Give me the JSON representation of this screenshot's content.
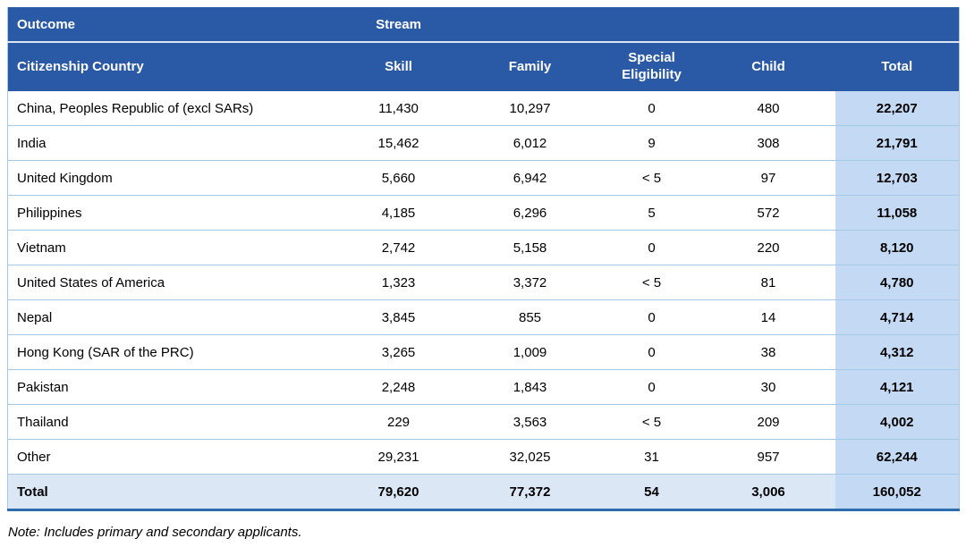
{
  "header": {
    "row1": {
      "outcome": "Outcome",
      "stream": "Stream"
    },
    "row2": {
      "country": "Citizenship Country",
      "skill": "Skill",
      "family": "Family",
      "special": "Special Eligibility",
      "child": "Child",
      "total": "Total"
    }
  },
  "rows": [
    {
      "country": "China, Peoples Republic of (excl SARs)",
      "skill": "11,430",
      "family": "10,297",
      "special": "0",
      "child": "480",
      "total": "22,207"
    },
    {
      "country": "India",
      "skill": "15,462",
      "family": "6,012",
      "special": "9",
      "child": "308",
      "total": "21,791"
    },
    {
      "country": "United Kingdom",
      "skill": "5,660",
      "family": "6,942",
      "special": "< 5",
      "child": "97",
      "total": "12,703"
    },
    {
      "country": "Philippines",
      "skill": "4,185",
      "family": "6,296",
      "special": "5",
      "child": "572",
      "total": "11,058"
    },
    {
      "country": "Vietnam",
      "skill": "2,742",
      "family": "5,158",
      "special": "0",
      "child": "220",
      "total": "8,120"
    },
    {
      "country": "United States of America",
      "skill": "1,323",
      "family": "3,372",
      "special": "< 5",
      "child": "81",
      "total": "4,780"
    },
    {
      "country": "Nepal",
      "skill": "3,845",
      "family": "855",
      "special": "0",
      "child": "14",
      "total": "4,714"
    },
    {
      "country": "Hong Kong (SAR of the PRC)",
      "skill": "3,265",
      "family": "1,009",
      "special": "0",
      "child": "38",
      "total": "4,312"
    },
    {
      "country": "Pakistan",
      "skill": "2,248",
      "family": "1,843",
      "special": "0",
      "child": "30",
      "total": "4,121"
    },
    {
      "country": "Thailand",
      "skill": "229",
      "family": "3,563",
      "special": "< 5",
      "child": "209",
      "total": "4,002"
    },
    {
      "country": "Other",
      "skill": "29,231",
      "family": "32,025",
      "special": "31",
      "child": "957",
      "total": "62,244"
    }
  ],
  "total_row": {
    "country": "Total",
    "skill": "79,620",
    "family": "77,372",
    "special": "54",
    "child": "3,006",
    "total": "160,052"
  },
  "note": "Note: Includes primary and secondary applicants.",
  "colors": {
    "header_bg": "#2A5AA6",
    "header_text": "#FFFFFF",
    "row_divider": "#A6C9E8",
    "total_column_bg": "#C4DAF4",
    "total_row_bg": "#DBE7F5",
    "bottom_border": "#2E6DAD"
  }
}
